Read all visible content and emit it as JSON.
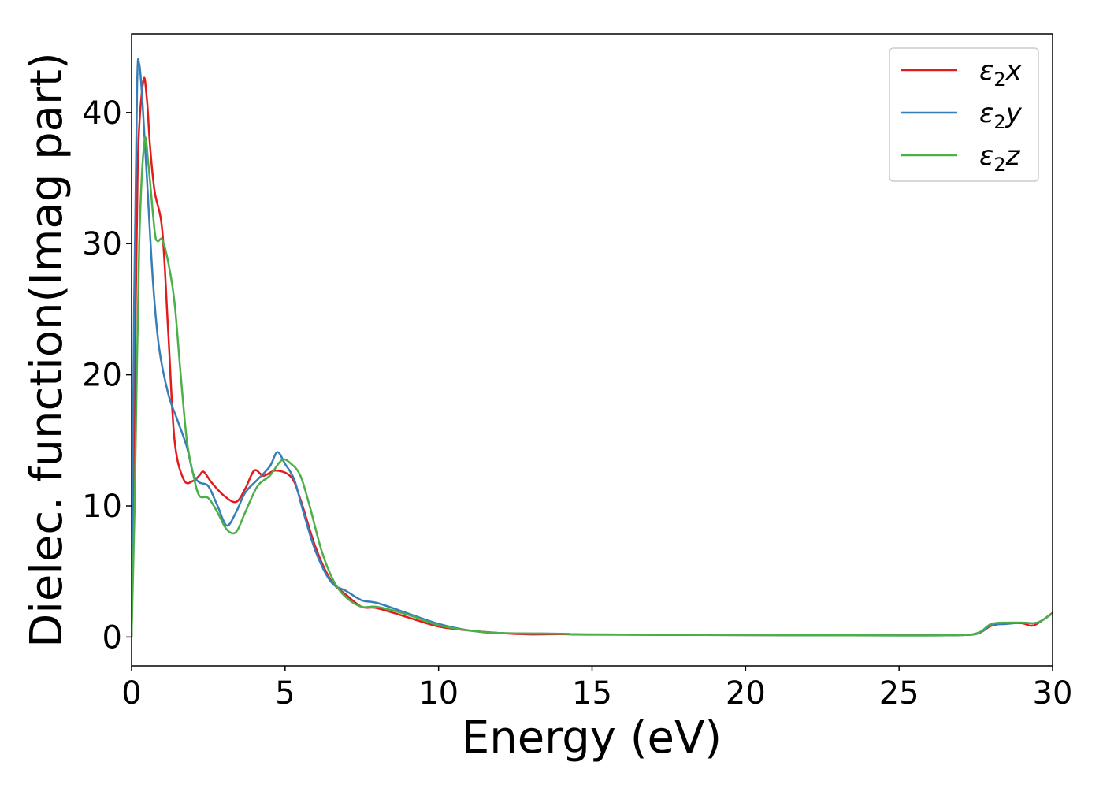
{
  "chart_data": {
    "type": "line",
    "xlabel": "Energy (eV)",
    "ylabel": "Dielec. function(Imag part)",
    "xlim": [
      0,
      30
    ],
    "ylim": [
      -2.2,
      46
    ],
    "x_ticks": [
      0,
      5,
      10,
      15,
      20,
      25,
      30
    ],
    "y_ticks": [
      0,
      10,
      20,
      30,
      40
    ],
    "grid": false,
    "legend_position": "top-right",
    "series": [
      {
        "name": "ε₂x",
        "legend_base": "ε",
        "legend_sub": "2",
        "legend_tail": "x",
        "color": "#e41a1c",
        "points": [
          [
            0,
            0
          ],
          [
            0.1,
            18
          ],
          [
            0.2,
            36
          ],
          [
            0.38,
            42.4
          ],
          [
            0.5,
            41
          ],
          [
            0.6,
            37.5
          ],
          [
            0.75,
            34
          ],
          [
            1.0,
            31
          ],
          [
            1.2,
            23
          ],
          [
            1.4,
            15
          ],
          [
            1.7,
            12
          ],
          [
            2.0,
            11.9
          ],
          [
            2.2,
            12.3
          ],
          [
            2.35,
            12.6
          ],
          [
            2.6,
            11.8
          ],
          [
            3.0,
            10.8
          ],
          [
            3.4,
            10.3
          ],
          [
            3.7,
            11.3
          ],
          [
            4.0,
            12.7
          ],
          [
            4.3,
            12.3
          ],
          [
            4.7,
            12.7
          ],
          [
            5.2,
            12.2
          ],
          [
            5.5,
            10.5
          ],
          [
            6.0,
            6.8
          ],
          [
            6.5,
            4.3
          ],
          [
            7.0,
            3.2
          ],
          [
            7.5,
            2.3
          ],
          [
            8.0,
            2.2
          ],
          [
            9.0,
            1.5
          ],
          [
            10.0,
            0.8
          ],
          [
            11.0,
            0.5
          ],
          [
            12.0,
            0.3
          ],
          [
            13.0,
            0.2
          ],
          [
            14.0,
            0.22
          ],
          [
            15.0,
            0.18
          ],
          [
            20.0,
            0.15
          ],
          [
            25.0,
            0.13
          ],
          [
            27.0,
            0.15
          ],
          [
            27.6,
            0.3
          ],
          [
            28.0,
            0.85
          ],
          [
            28.5,
            1.05
          ],
          [
            29.0,
            1.05
          ],
          [
            29.4,
            0.9
          ],
          [
            30.0,
            1.85
          ]
        ]
      },
      {
        "name": "ε₂y",
        "legend_base": "ε",
        "legend_sub": "2",
        "legend_tail": "y",
        "color": "#377eb8",
        "points": [
          [
            0,
            0
          ],
          [
            0.08,
            25
          ],
          [
            0.18,
            42
          ],
          [
            0.25,
            43.7
          ],
          [
            0.35,
            41
          ],
          [
            0.5,
            35
          ],
          [
            0.7,
            27
          ],
          [
            0.9,
            22
          ],
          [
            1.2,
            18.5
          ],
          [
            1.5,
            16.5
          ],
          [
            1.8,
            14.5
          ],
          [
            2.0,
            12.5
          ],
          [
            2.2,
            11.8
          ],
          [
            2.5,
            11.5
          ],
          [
            2.8,
            10
          ],
          [
            3.1,
            8.5
          ],
          [
            3.4,
            9.5
          ],
          [
            3.7,
            11
          ],
          [
            4.1,
            12
          ],
          [
            4.5,
            13
          ],
          [
            4.75,
            14.1
          ],
          [
            5.0,
            13.2
          ],
          [
            5.3,
            12
          ],
          [
            5.6,
            9.5
          ],
          [
            6.0,
            6.5
          ],
          [
            6.5,
            4.2
          ],
          [
            7.0,
            3.5
          ],
          [
            7.5,
            2.8
          ],
          [
            8.0,
            2.6
          ],
          [
            9.0,
            1.8
          ],
          [
            10.0,
            1.0
          ],
          [
            11.0,
            0.5
          ],
          [
            12.0,
            0.3
          ],
          [
            14.0,
            0.25
          ],
          [
            15.0,
            0.2
          ],
          [
            20.0,
            0.15
          ],
          [
            25.0,
            0.12
          ],
          [
            27.0,
            0.15
          ],
          [
            27.6,
            0.3
          ],
          [
            28.0,
            0.9
          ],
          [
            28.5,
            1.0
          ],
          [
            29.0,
            1.1
          ],
          [
            29.5,
            1.1
          ],
          [
            30.0,
            1.8
          ]
        ]
      },
      {
        "name": "ε₂z",
        "legend_base": "ε",
        "legend_sub": "2",
        "legend_tail": "z",
        "color": "#4daf4a",
        "points": [
          [
            0,
            0
          ],
          [
            0.1,
            10
          ],
          [
            0.25,
            30
          ],
          [
            0.42,
            37.8
          ],
          [
            0.55,
            36
          ],
          [
            0.75,
            31
          ],
          [
            0.85,
            30.2
          ],
          [
            1.0,
            30.3
          ],
          [
            1.2,
            28.5
          ],
          [
            1.4,
            25.5
          ],
          [
            1.6,
            20
          ],
          [
            1.8,
            15
          ],
          [
            2.0,
            12.5
          ],
          [
            2.2,
            10.8
          ],
          [
            2.5,
            10.6
          ],
          [
            2.8,
            9.5
          ],
          [
            3.1,
            8.2
          ],
          [
            3.4,
            8.0
          ],
          [
            3.7,
            9.5
          ],
          [
            4.1,
            11.5
          ],
          [
            4.5,
            12.3
          ],
          [
            4.9,
            13.5
          ],
          [
            5.2,
            13.2
          ],
          [
            5.5,
            12.3
          ],
          [
            5.8,
            10
          ],
          [
            6.2,
            6.5
          ],
          [
            6.6,
            4.2
          ],
          [
            7.0,
            3.0
          ],
          [
            7.5,
            2.3
          ],
          [
            8.0,
            2.3
          ],
          [
            9.0,
            1.7
          ],
          [
            10.0,
            0.9
          ],
          [
            11.0,
            0.5
          ],
          [
            12.0,
            0.3
          ],
          [
            14.0,
            0.25
          ],
          [
            15.0,
            0.2
          ],
          [
            20.0,
            0.15
          ],
          [
            25.0,
            0.12
          ],
          [
            27.0,
            0.15
          ],
          [
            27.6,
            0.35
          ],
          [
            28.0,
            1.0
          ],
          [
            28.5,
            1.1
          ],
          [
            29.0,
            1.1
          ],
          [
            29.5,
            1.1
          ],
          [
            30.0,
            1.8
          ]
        ]
      }
    ]
  }
}
